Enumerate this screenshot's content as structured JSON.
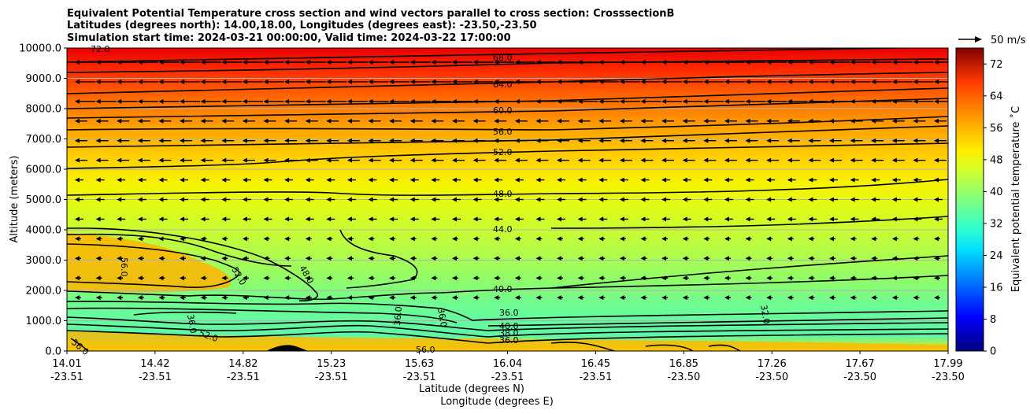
{
  "chart_data": {
    "type": "contour",
    "title_lines": [
      "Equivalent Potential Temperature cross section and wind vectors parallel to cross section: CrosssectionB",
      "Latitudes (degrees north): 14.00,18.00, Longitudes (degrees east): -23.50,-23.50",
      "Simulation start time: 2024-03-21 00:00:00, Valid time: 2024-03-22 17:00:00"
    ],
    "xlabel_lat": "Latitude (degrees N)",
    "xlabel_lon": "Longitude (degrees E)",
    "ylabel": "Altitude (meters)",
    "x_ticks": [
      {
        "lat": "14.01",
        "lon": "-23.51"
      },
      {
        "lat": "14.42",
        "lon": "-23.51"
      },
      {
        "lat": "14.82",
        "lon": "-23.51"
      },
      {
        "lat": "15.23",
        "lon": "-23.51"
      },
      {
        "lat": "15.63",
        "lon": "-23.51"
      },
      {
        "lat": "16.04",
        "lon": "-23.51"
      },
      {
        "lat": "16.45",
        "lon": "-23.51"
      },
      {
        "lat": "16.85",
        "lon": "-23.50"
      },
      {
        "lat": "17.26",
        "lon": "-23.50"
      },
      {
        "lat": "17.67",
        "lon": "-23.50"
      },
      {
        "lat": "17.99",
        "lon": "-23.50"
      }
    ],
    "y_ticks": [
      "0.0",
      "1000.0",
      "2000.0",
      "3000.0",
      "4000.0",
      "5000.0",
      "6000.0",
      "7000.0",
      "8000.0",
      "9000.0",
      "10000.0"
    ],
    "ylim": [
      0,
      10000
    ],
    "grid": "horizontal",
    "colorbar": {
      "label": "Equivalent potential temperature ˚C",
      "ticks": [
        "0",
        "8",
        "16",
        "24",
        "32",
        "40",
        "48",
        "56",
        "64",
        "72"
      ],
      "range": [
        0,
        76
      ]
    },
    "quiver_key": "50 m/s",
    "contour_labels": [
      "68.0",
      "64.0",
      "60.0",
      "56.0",
      "52.0",
      "48.0",
      "44.0",
      "40.0",
      "36.0",
      "40.0",
      "38.0",
      "36.0",
      "56.0",
      "52.0",
      "48.0",
      "36.0",
      "36.0",
      "36.0",
      "52.0",
      "56.0",
      "32.0",
      "72.0",
      "56.0"
    ]
  }
}
